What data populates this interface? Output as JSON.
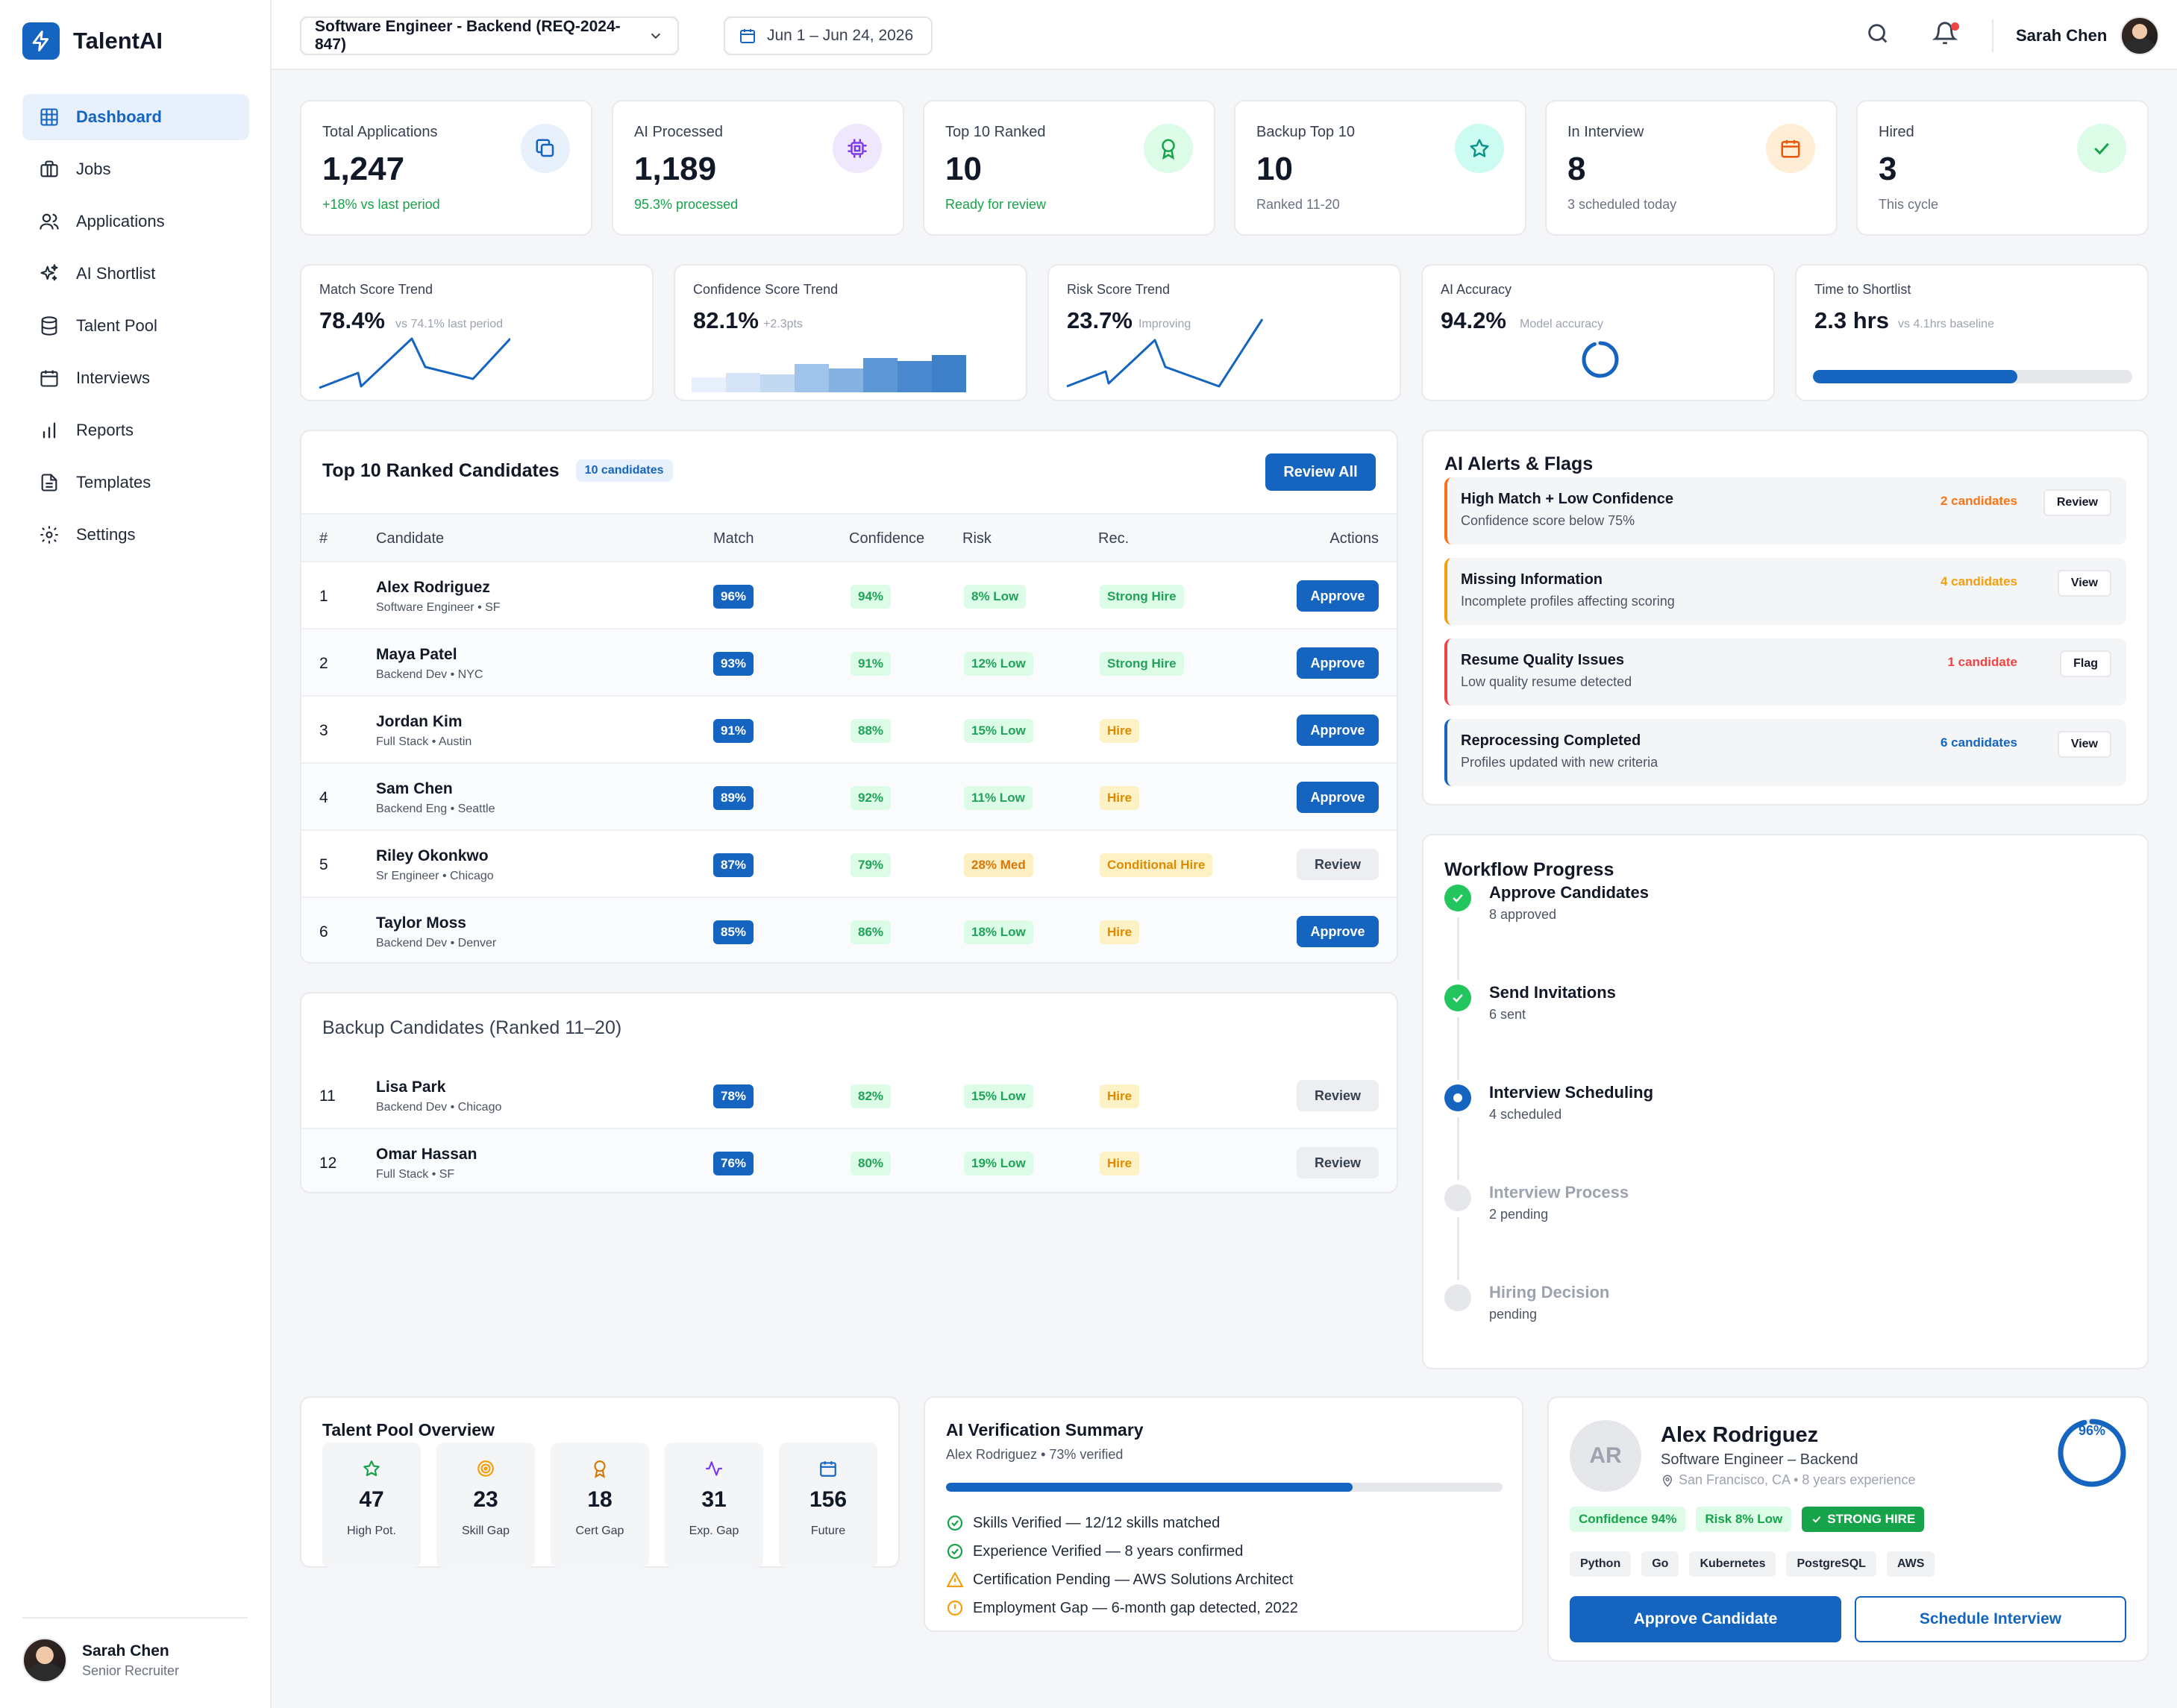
{
  "app": {
    "name": "TalentAI"
  },
  "sidebar": {
    "items": [
      {
        "label": "Dashboard"
      },
      {
        "label": "Jobs"
      },
      {
        "label": "Applications"
      },
      {
        "label": "AI Shortlist"
      },
      {
        "label": "Talent Pool"
      },
      {
        "label": "Interviews"
      },
      {
        "label": "Reports"
      },
      {
        "label": "Templates"
      },
      {
        "label": "Settings"
      }
    ],
    "user": {
      "name": "Sarah Chen",
      "role": "Senior Recruiter"
    }
  },
  "topbar": {
    "job": "Software Engineer - Backend (REQ-2024-847)",
    "date_range": "Jun 1 – Jun 24, 2026",
    "user_name": "Sarah Chen"
  },
  "stats": [
    {
      "label": "Total Applications",
      "value": "1,247",
      "sub": "+18% vs last period",
      "icon": "copy-icon",
      "color": "#1565c0"
    },
    {
      "label": "AI Processed",
      "value": "1,189",
      "sub": "95.3% processed",
      "icon": "cpu-icon",
      "color": "#7c3aed"
    },
    {
      "label": "Top 10 Ranked",
      "value": "10",
      "sub": "Ready for review",
      "icon": "award-icon",
      "color": "#16a34a"
    },
    {
      "label": "Backup Top 10",
      "value": "10",
      "sub": "Ranked 11-20",
      "icon": "star-icon",
      "color": "#0d9488"
    },
    {
      "label": "In Interview",
      "value": "8",
      "sub": "3 scheduled today",
      "icon": "calendar-icon",
      "color": "#ea580c"
    },
    {
      "label": "Hired",
      "value": "3",
      "sub": "This cycle",
      "icon": "check-icon",
      "color": "#16a34a"
    }
  ],
  "trends": [
    {
      "label": "Match Score Trend",
      "value": "78.4%",
      "sub": "vs 74.1% last period"
    },
    {
      "label": "Confidence Score Trend",
      "value": "82.1%",
      "sub": "+2.3pts"
    },
    {
      "label": "Risk Score Trend",
      "value": "23.7%",
      "sub": "Improving"
    },
    {
      "label": "AI Accuracy",
      "value": "94.2%",
      "sub": "Model accuracy"
    },
    {
      "label": "Time to Shortlist",
      "value": "2.3 hrs",
      "sub": "vs 4.1hrs baseline",
      "progress": 0.64
    }
  ],
  "top10": {
    "title": "Top 10 Ranked Candidates",
    "badge": "10 candidates",
    "review_all": "Review All",
    "headers": {
      "num": "#",
      "candidate": "Candidate",
      "match": "Match",
      "confidence": "Confidence",
      "risk": "Risk",
      "rec": "Rec.",
      "actions": "Actions"
    },
    "rows": [
      {
        "num": "1",
        "name": "Alex Rodriguez",
        "role": "Software Engineer • SF",
        "match": "96%",
        "conf": "94%",
        "risk": "8% Low",
        "rec": "Strong Hire",
        "action": "Approve"
      },
      {
        "num": "2",
        "name": "Maya Patel",
        "role": "Backend Dev • NYC",
        "match": "93%",
        "conf": "91%",
        "risk": "12% Low",
        "rec": "Strong Hire",
        "action": "Approve"
      },
      {
        "num": "3",
        "name": "Jordan Kim",
        "role": "Full Stack • Austin",
        "match": "91%",
        "conf": "88%",
        "risk": "15% Low",
        "rec": "Hire",
        "action": "Approve"
      },
      {
        "num": "4",
        "name": "Sam Chen",
        "role": "Backend Eng • Seattle",
        "match": "89%",
        "conf": "92%",
        "risk": "11% Low",
        "rec": "Hire",
        "action": "Approve"
      },
      {
        "num": "5",
        "name": "Riley Okonkwo",
        "role": "Sr Engineer • Chicago",
        "match": "87%",
        "conf": "79%",
        "risk": "28% Med",
        "rec": "Conditional Hire",
        "action": "Review"
      },
      {
        "num": "6",
        "name": "Taylor Moss",
        "role": "Backend Dev • Denver",
        "match": "85%",
        "conf": "86%",
        "risk": "18% Low",
        "rec": "Hire",
        "action": "Approve"
      }
    ]
  },
  "backup": {
    "title": "Backup Candidates (Ranked 11–20)",
    "rows": [
      {
        "num": "11",
        "name": "Lisa Park",
        "role": "Backend Dev • Chicago",
        "match": "78%",
        "conf": "82%",
        "risk": "15% Low",
        "rec": "Hire",
        "action": "Review"
      },
      {
        "num": "12",
        "name": "Omar Hassan",
        "role": "Full Stack • SF",
        "match": "76%",
        "conf": "80%",
        "risk": "19% Low",
        "rec": "Hire",
        "action": "Review"
      }
    ]
  },
  "alerts": {
    "title": "AI Alerts & Flags",
    "items": [
      {
        "title": "High Match + Low Confidence",
        "desc": "Confidence score below 75%",
        "count": "2 candidates",
        "button": "Review",
        "color": "#f97316"
      },
      {
        "title": "Missing Information",
        "desc": "Incomplete profiles affecting scoring",
        "count": "4 candidates",
        "button": "View",
        "color": "#f59e0b"
      },
      {
        "title": "Resume Quality Issues",
        "desc": "Low quality resume detected",
        "count": "1 candidate",
        "button": "Flag",
        "color": "#ef4444"
      },
      {
        "title": "Reprocessing Completed",
        "desc": "Profiles updated with new criteria",
        "count": "6 candidates",
        "button": "View",
        "color": "#1565c0"
      }
    ]
  },
  "workflow": {
    "title": "Workflow Progress",
    "steps": [
      {
        "title": "Approve Candidates",
        "sub": "8 approved",
        "state": "done"
      },
      {
        "title": "Send Invitations",
        "sub": "6 sent",
        "state": "done"
      },
      {
        "title": "Interview Scheduling",
        "sub": "4 scheduled",
        "state": "current"
      },
      {
        "title": "Interview Process",
        "sub": "2 pending",
        "state": "pending"
      },
      {
        "title": "Hiring Decision",
        "sub": "pending",
        "state": "pending"
      }
    ]
  },
  "talent_pool": {
    "title": "Talent Pool Overview",
    "items": [
      {
        "value": "47",
        "label": "High Pot.",
        "icon": "star-icon",
        "color": "#16a34a"
      },
      {
        "value": "23",
        "label": "Skill Gap",
        "icon": "target-icon",
        "color": "#f59e0b"
      },
      {
        "value": "18",
        "label": "Cert Gap",
        "icon": "award-icon",
        "color": "#d97706"
      },
      {
        "value": "31",
        "label": "Exp. Gap",
        "icon": "activity-icon",
        "color": "#7c3aed"
      },
      {
        "value": "156",
        "label": "Future",
        "icon": "calendar-icon",
        "color": "#1565c0"
      }
    ]
  },
  "verification": {
    "title": "AI Verification Summary",
    "subtitle": "Alex Rodriguez • 73% verified",
    "progress": 0.73,
    "items": [
      {
        "text": "Skills Verified — 12/12 skills matched",
        "status": "ok"
      },
      {
        "text": "Experience Verified — 8 years confirmed",
        "status": "ok"
      },
      {
        "text": "Certification Pending — AWS Solutions Architect",
        "status": "warn"
      },
      {
        "text": "Employment Gap — 6-month gap detected, 2022",
        "status": "info"
      }
    ]
  },
  "profile": {
    "initials": "AR",
    "name": "Alex Rodriguez",
    "title": "Software Engineer – Backend",
    "location": "San Francisco, CA • 8 years experience",
    "score": "96%",
    "score_value": 0.96,
    "confidence": "Confidence 94%",
    "risk": "Risk 8% Low",
    "verdict": "STRONG HIRE",
    "skills": [
      "Python",
      "Go",
      "Kubernetes",
      "PostgreSQL",
      "AWS"
    ],
    "approve": "Approve Candidate",
    "schedule": "Schedule Interview"
  }
}
